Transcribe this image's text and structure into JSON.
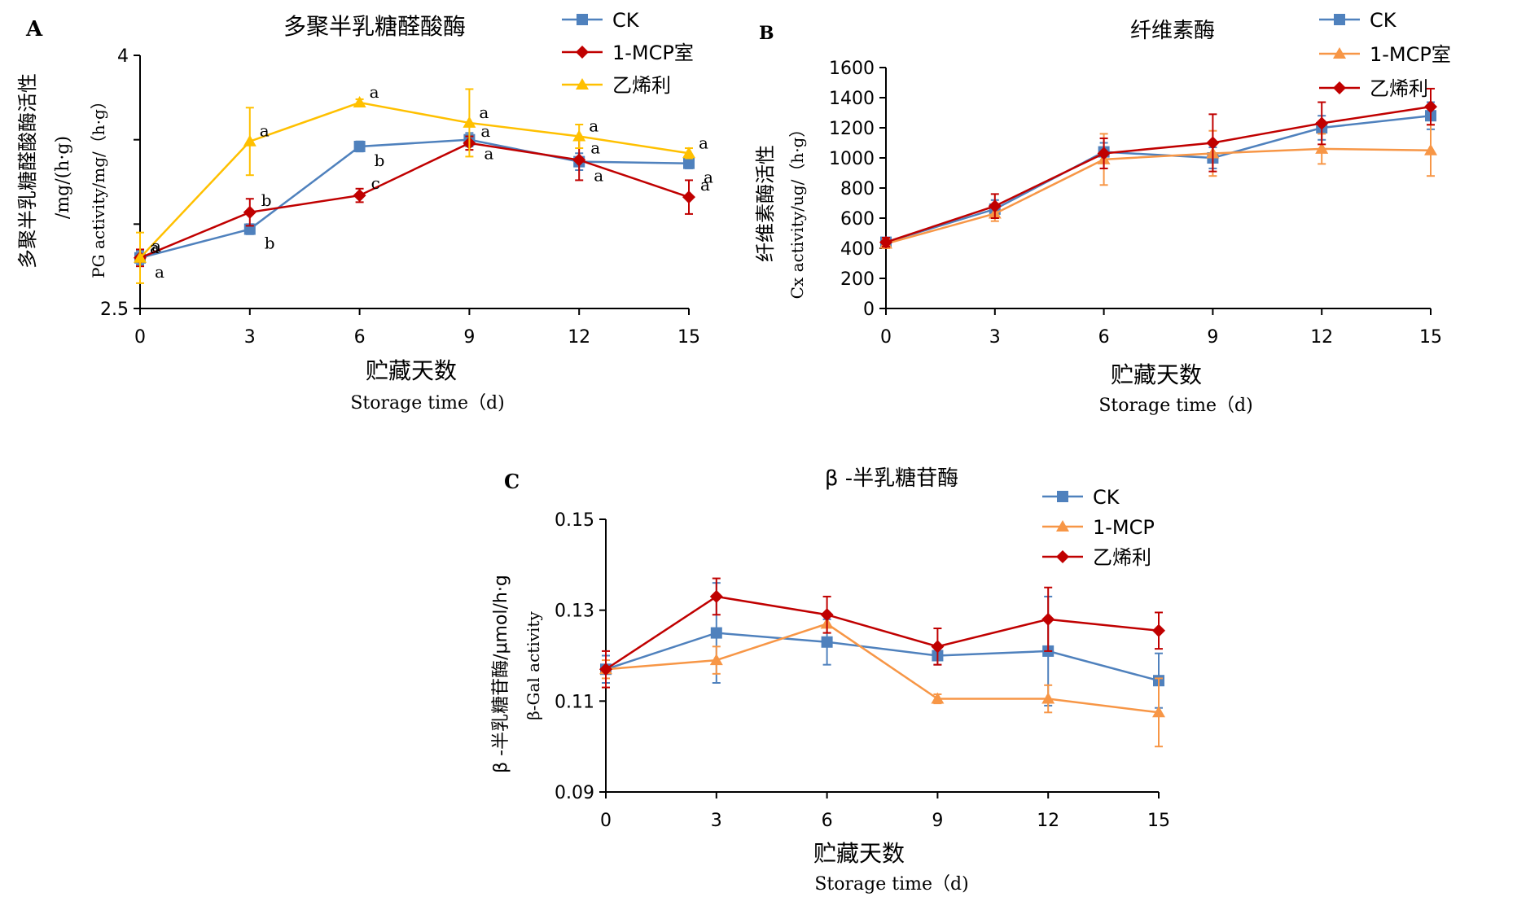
{
  "colors": {
    "blue": "#4F81BD",
    "red": "#C00000",
    "yellow": "#FFC000",
    "orange": "#F79646",
    "axis": "#000000"
  },
  "chart_data": [
    {
      "type": "line",
      "panel_label": "A",
      "title": "多聚半乳糖醛酸酶",
      "ylabel": [
        "多聚半乳糖醛酸酶活性",
        "/mg/(h·g)",
        "PG activity/mg/（h·g）"
      ],
      "xlabel": [
        "贮藏天数",
        "Storage time（d)"
      ],
      "x": [
        0,
        3,
        6,
        9,
        12,
        15
      ],
      "ylim": [
        2.5,
        4
      ],
      "yticks": [
        "2.5",
        "",
        "",
        "4"
      ],
      "ytick_values": [
        2.5,
        3,
        3.5,
        4
      ],
      "series": [
        {
          "name": "CK",
          "color": "#4F81BD",
          "marker": "square",
          "values": [
            2.8,
            2.97,
            3.46,
            3.5,
            3.37,
            3.36
          ],
          "err": [
            0.04,
            0.03,
            0.03,
            0.04,
            0.05,
            0.03
          ],
          "letters": [
            "a",
            "b",
            "b",
            "a",
            "a",
            "a"
          ]
        },
        {
          "name": "1-MCP室",
          "color": "#C00000",
          "marker": "diamond",
          "values": [
            2.8,
            3.07,
            3.17,
            3.48,
            3.38,
            3.16
          ],
          "err": [
            0.05,
            0.08,
            0.04,
            0.04,
            0.12,
            0.1
          ],
          "letters": [
            "a",
            "b",
            "c",
            "a",
            "a",
            "a"
          ]
        },
        {
          "name": "乙烯利",
          "color": "#FFC000",
          "marker": "triangle",
          "values": [
            2.8,
            3.49,
            3.72,
            3.6,
            3.52,
            3.42
          ],
          "err": [
            0.15,
            0.2,
            0.02,
            0.2,
            0.07,
            0.03
          ],
          "letters": [
            "a",
            "a",
            "a",
            "a",
            "a",
            "a"
          ]
        }
      ]
    },
    {
      "type": "line",
      "panel_label": "B",
      "title": "纤维素酶",
      "ylabel": [
        "纤维素酶活性",
        "Cx activity/ug/（h·g）"
      ],
      "xlabel": [
        "贮藏天数",
        "Storage time（d)"
      ],
      "x": [
        0,
        3,
        6,
        9,
        12,
        15
      ],
      "ylim": [
        0,
        1600
      ],
      "yticks": [
        "0",
        "200",
        "400",
        "600",
        "800",
        "1000",
        "1200",
        "1400",
        "1600"
      ],
      "ytick_values": [
        0,
        200,
        400,
        600,
        800,
        1000,
        1200,
        1400,
        1600
      ],
      "series": [
        {
          "name": "CK",
          "color": "#4F81BD",
          "marker": "square",
          "values": [
            440,
            660,
            1040,
            1000,
            1200,
            1280
          ],
          "err": [
            30,
            60,
            60,
            70,
            80,
            90
          ]
        },
        {
          "name": "1-MCP室",
          "color": "#F79646",
          "marker": "triangle",
          "values": [
            430,
            630,
            990,
            1030,
            1060,
            1050
          ],
          "err": [
            30,
            50,
            170,
            150,
            100,
            170
          ]
        },
        {
          "name": "乙烯利",
          "color": "#C00000",
          "marker": "diamond",
          "values": [
            440,
            680,
            1030,
            1100,
            1230,
            1340
          ],
          "err": [
            30,
            80,
            100,
            190,
            140,
            120
          ]
        }
      ]
    },
    {
      "type": "line",
      "panel_label": "C",
      "title": "β -半乳糖苷酶",
      "ylabel": [
        "β -半乳糖苷酶/μmol/h·g",
        "β-Gal activity"
      ],
      "xlabel": [
        "贮藏天数",
        "Storage time（d)"
      ],
      "x": [
        0,
        3,
        6,
        9,
        12,
        15
      ],
      "ylim": [
        0.09,
        0.15
      ],
      "yticks": [
        "0.09",
        "0.11",
        "0.13",
        "0.15"
      ],
      "ytick_values": [
        0.09,
        0.11,
        0.13,
        0.15
      ],
      "series": [
        {
          "name": "CK",
          "color": "#4F81BD",
          "marker": "square",
          "values": [
            0.117,
            0.125,
            0.123,
            0.12,
            0.121,
            0.1145
          ],
          "err": [
            0.003,
            0.011,
            0.005,
            0.002,
            0.012,
            0.006
          ]
        },
        {
          "name": "1-MCP",
          "color": "#F79646",
          "marker": "triangle",
          "values": [
            0.117,
            0.119,
            0.127,
            0.1105,
            0.1105,
            0.1075
          ],
          "err": [
            0.002,
            0.003,
            0.002,
            0.001,
            0.003,
            0.0075
          ]
        },
        {
          "name": "乙烯利",
          "color": "#C00000",
          "marker": "diamond",
          "values": [
            0.117,
            0.133,
            0.129,
            0.122,
            0.128,
            0.1255
          ],
          "err": [
            0.004,
            0.004,
            0.004,
            0.004,
            0.007,
            0.004
          ]
        }
      ]
    }
  ]
}
